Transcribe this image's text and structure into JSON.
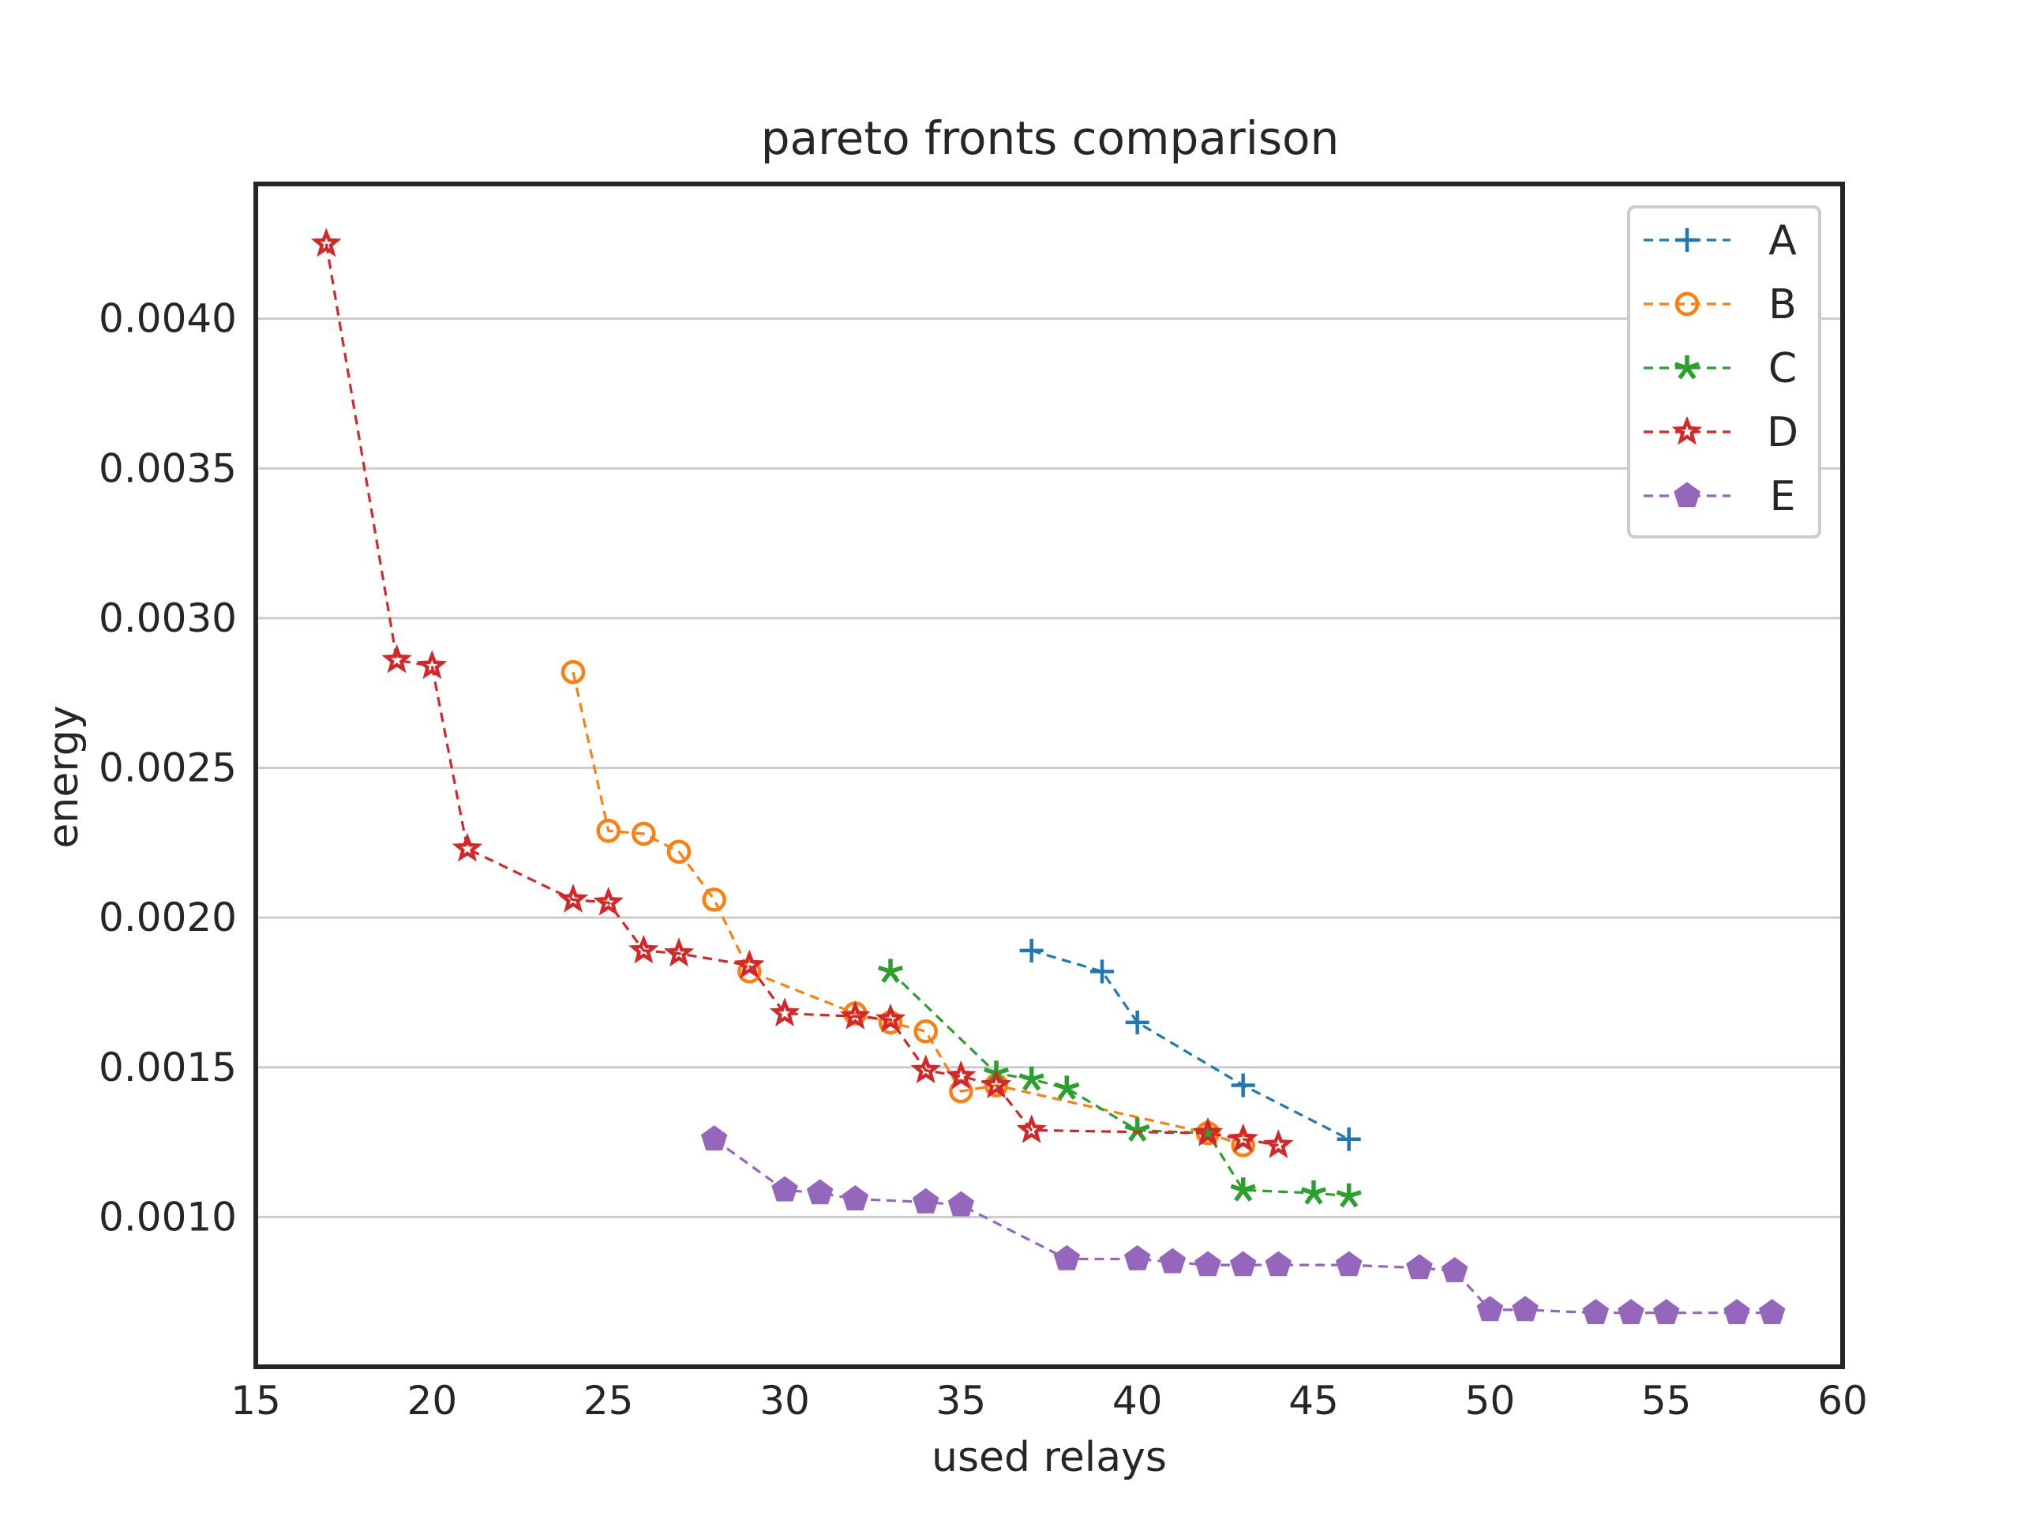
{
  "chart_data": {
    "type": "line",
    "title": "pareto fronts comparison",
    "xlabel": "used relays",
    "ylabel": "energy",
    "xlim": [
      15,
      60
    ],
    "ylim": [
      0.0005,
      0.00445
    ],
    "xticks": [
      15,
      20,
      25,
      30,
      35,
      40,
      45,
      50,
      55,
      60
    ],
    "yticks": [
      0.001,
      0.0015,
      0.002,
      0.0025,
      0.003,
      0.0035,
      0.004
    ],
    "ytick_labels": [
      "0.0010",
      "0.0015",
      "0.0020",
      "0.0025",
      "0.0030",
      "0.0035",
      "0.0040"
    ],
    "grid": "horizontal",
    "legend_position": "top-right",
    "line_style": "dashed",
    "series": [
      {
        "name": "A",
        "color": "#1f77b4",
        "marker": "plus",
        "x": [
          37,
          39,
          40,
          43,
          46
        ],
        "y": [
          0.00189,
          0.00182,
          0.00165,
          0.00144,
          0.00126
        ]
      },
      {
        "name": "B",
        "color": "#ff7f0e",
        "marker": "circle",
        "x": [
          24,
          25,
          26,
          27,
          28,
          29,
          32,
          33,
          34,
          35,
          36,
          42,
          43
        ],
        "y": [
          0.00282,
          0.00229,
          0.00228,
          0.00222,
          0.00206,
          0.00182,
          0.00168,
          0.00165,
          0.00162,
          0.00142,
          0.00144,
          0.00128,
          0.00124
        ]
      },
      {
        "name": "C",
        "color": "#2ca02c",
        "marker": "star",
        "x": [
          33,
          36,
          37,
          38,
          40,
          42,
          43,
          45,
          46
        ],
        "y": [
          0.00182,
          0.00148,
          0.00146,
          0.00143,
          0.00129,
          0.00128,
          0.00109,
          0.00108,
          0.00107
        ]
      },
      {
        "name": "D",
        "color": "#d62728",
        "marker": "hollow-star",
        "x": [
          17,
          19,
          20,
          21,
          24,
          25,
          26,
          27,
          29,
          30,
          32,
          33,
          34,
          35,
          36,
          37,
          42,
          43,
          44
        ],
        "y": [
          0.00425,
          0.00286,
          0.00284,
          0.00223,
          0.00206,
          0.00205,
          0.00189,
          0.00188,
          0.00184,
          0.00168,
          0.00167,
          0.00166,
          0.00149,
          0.00147,
          0.00144,
          0.00129,
          0.00128,
          0.00126,
          0.00124
        ]
      },
      {
        "name": "E",
        "color": "#9467bd",
        "marker": "pentagon",
        "x": [
          28,
          30,
          31,
          32,
          34,
          35,
          38,
          40,
          41,
          42,
          43,
          44,
          46,
          48,
          49,
          50,
          51,
          53,
          54,
          55,
          57,
          58
        ],
        "y": [
          0.00126,
          0.00109,
          0.00108,
          0.00106,
          0.00105,
          0.00104,
          0.00086,
          0.00086,
          0.00085,
          0.00084,
          0.00084,
          0.00084,
          0.00084,
          0.00083,
          0.00082,
          0.00069,
          0.00069,
          0.00068,
          0.00068,
          0.00068,
          0.00068,
          0.00068
        ]
      }
    ]
  }
}
